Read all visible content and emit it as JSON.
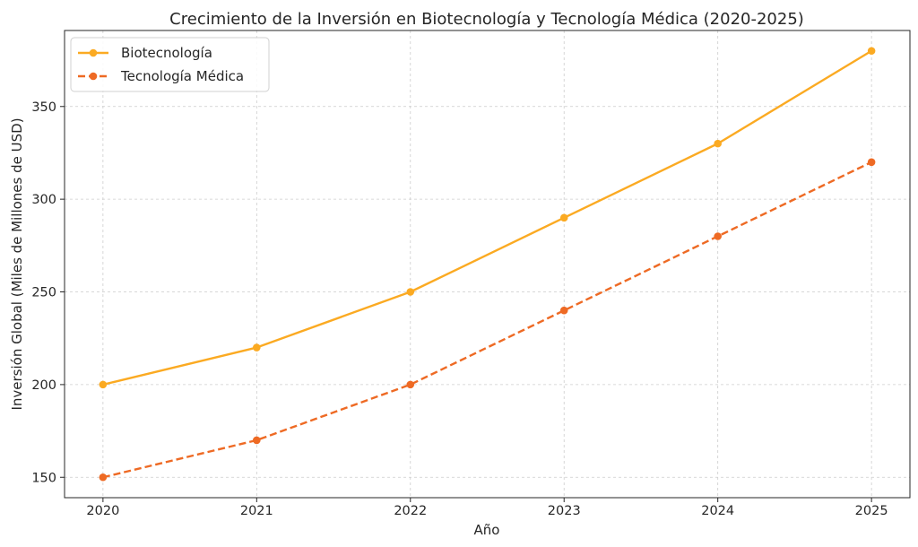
{
  "chart_data": {
    "type": "line",
    "title": "Crecimiento de la Inversión en Biotecnología y Tecnología Médica (2020-2025)",
    "xlabel": "Año",
    "ylabel": "Inversión Global (Miles de Millones de USD)",
    "categories": [
      "2020",
      "2021",
      "2022",
      "2023",
      "2024",
      "2025"
    ],
    "x": [
      2020,
      2021,
      2022,
      2023,
      2024,
      2025
    ],
    "xlim": [
      2019.75,
      2025.25
    ],
    "ylim": [
      139,
      391
    ],
    "yticks": [
      150,
      200,
      250,
      300,
      350
    ],
    "grid": true,
    "legend_position": "top-left",
    "series": [
      {
        "name": "Biotecnología",
        "values": [
          200,
          220,
          250,
          290,
          330,
          380
        ],
        "color": "#FBAA22",
        "line_style": "solid",
        "marker": "circle"
      },
      {
        "name": "Tecnología Médica",
        "values": [
          150,
          170,
          200,
          240,
          280,
          320
        ],
        "color": "#EE6A24",
        "line_style": "dashed",
        "marker": "circle"
      }
    ]
  }
}
